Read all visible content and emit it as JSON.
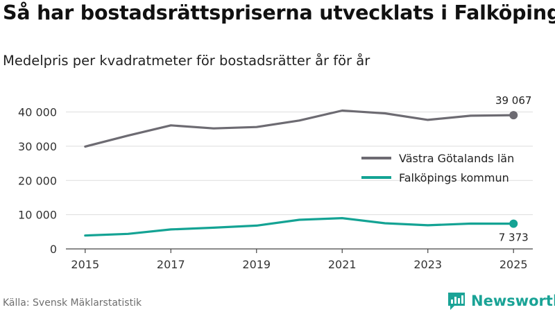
{
  "header": {
    "title": "Så har bostadsrättspriserna utvecklats i Falköping",
    "subtitle": "Medelpris per kvadratmeter för bostadsrätter år för år"
  },
  "footer": {
    "source": "Källa: Svensk Mäklarstatistik",
    "brand": "Newsworthy"
  },
  "icons": {
    "logo": "bar-chart-speech-bubble-icon"
  },
  "colors": {
    "region": "#6d6b72",
    "municipality": "#14a394",
    "grid": "#dddddd",
    "axis": "#444444"
  },
  "chart_data": {
    "type": "line",
    "title": "Så har bostadsrättspriserna utvecklats i Falköping",
    "subtitle": "Medelpris per kvadratmeter för bostadsrätter år för år",
    "xlabel": "",
    "ylabel": "",
    "x": [
      2015,
      2016,
      2017,
      2018,
      2019,
      2020,
      2021,
      2022,
      2023,
      2024,
      2025
    ],
    "x_ticks": [
      "2015",
      "2017",
      "2019",
      "2021",
      "2023",
      "2025"
    ],
    "y_ticks": [
      "0",
      "10 000",
      "20 000",
      "30 000",
      "40 000"
    ],
    "ylim": [
      0,
      40000
    ],
    "grid": true,
    "legend_position": "right",
    "series": [
      {
        "name": "Västra Götalands län",
        "color": "#6d6b72",
        "values": [
          29900,
          33100,
          36100,
          35200,
          35600,
          37500,
          40400,
          39600,
          37700,
          38900,
          39067
        ],
        "end_label": "39 067"
      },
      {
        "name": "Falköpings kommun",
        "color": "#14a394",
        "values": [
          3900,
          4400,
          5700,
          6200,
          6800,
          8500,
          9000,
          7500,
          6900,
          7400,
          7373
        ],
        "end_label": "7 373"
      }
    ]
  }
}
